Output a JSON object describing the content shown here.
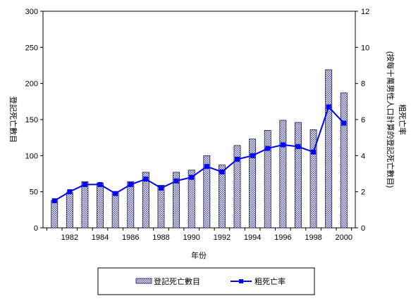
{
  "chart_data": {
    "type": "bar",
    "x": [
      1981,
      1982,
      1983,
      1984,
      1985,
      1986,
      1987,
      1988,
      1989,
      1990,
      1991,
      1992,
      1993,
      1994,
      1995,
      1996,
      1997,
      1998,
      1999,
      2000
    ],
    "x_tick_labels": [
      "1982",
      "1984",
      "1986",
      "1988",
      "1990",
      "1992",
      "1994",
      "1996",
      "1998",
      "2000"
    ],
    "series": [
      {
        "name": "登記死亡數目",
        "type": "bar",
        "axis": "left",
        "pattern": "dotted",
        "values": [
          38,
          49,
          64,
          62,
          48,
          64,
          77,
          59,
          77,
          80,
          100,
          87,
          114,
          123,
          135,
          149,
          146,
          136,
          219,
          187
        ]
      },
      {
        "name": "粗死亡率",
        "type": "line",
        "axis": "right",
        "color": "#0000ff",
        "values": [
          1.5,
          2.0,
          2.4,
          2.4,
          1.9,
          2.4,
          2.7,
          2.2,
          2.6,
          2.8,
          3.4,
          3.1,
          3.8,
          4.0,
          4.4,
          4.6,
          4.5,
          4.2,
          6.7,
          5.8
        ]
      }
    ],
    "y_left": {
      "label": "登記死亡數目",
      "ylim": [
        0,
        300
      ],
      "ticks": [
        "0",
        "50",
        "100",
        "150",
        "200",
        "250",
        "300"
      ]
    },
    "y_right": {
      "label_line1": "粗死亡率",
      "label_line2": "(按每十萬男性人口計算的登記死亡數目)",
      "ylim": [
        0,
        12
      ],
      "ticks": [
        "0",
        "2",
        "4",
        "6",
        "8",
        "10",
        "12"
      ]
    },
    "xlabel": "年份",
    "legend_position": "bottom",
    "colors": {
      "line": "#0000ff",
      "bar_border": "#1a1a40",
      "bar_dot": "#3a3aa0"
    }
  }
}
